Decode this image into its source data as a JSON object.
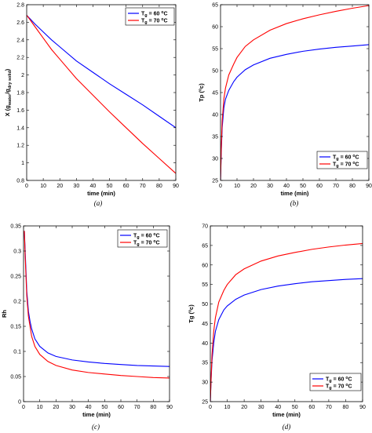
{
  "chart_data": [
    {
      "type": "line",
      "caption": "(a)",
      "xlabel": "time (min)",
      "ylabel": "X (g_water/g_dry solid)",
      "xlim": [
        0,
        90
      ],
      "ylim": [
        0.8,
        2.8
      ],
      "xticks": [
        "0",
        "10",
        "20",
        "30",
        "40",
        "50",
        "60",
        "70",
        "80",
        "90"
      ],
      "yticks": [
        "0.8",
        "1",
        "1.2",
        "1.4",
        "1.6",
        "1.8",
        "2",
        "2.2",
        "2.4",
        "2.6",
        "2.8"
      ],
      "legend_position": "top-right",
      "series": [
        {
          "name": "Tg = 60 °C",
          "color": "#0000ff",
          "x": [
            0,
            2,
            5,
            10,
            15,
            20,
            30,
            40,
            50,
            60,
            70,
            80,
            90
          ],
          "y": [
            2.68,
            2.64,
            2.58,
            2.49,
            2.4,
            2.32,
            2.16,
            2.03,
            1.9,
            1.78,
            1.66,
            1.53,
            1.4
          ]
        },
        {
          "name": "Tg = 70 °C",
          "color": "#ff0000",
          "x": [
            0,
            2,
            5,
            10,
            15,
            20,
            30,
            40,
            50,
            60,
            70,
            80,
            90
          ],
          "y": [
            2.68,
            2.63,
            2.55,
            2.42,
            2.29,
            2.18,
            1.96,
            1.77,
            1.58,
            1.4,
            1.22,
            1.05,
            0.88
          ]
        }
      ]
    },
    {
      "type": "line",
      "caption": "(b)",
      "xlabel": "time (min)",
      "ylabel": "Tp (°c)",
      "xlim": [
        0,
        90
      ],
      "ylim": [
        25,
        65
      ],
      "xticks": [
        "0",
        "10",
        "20",
        "30",
        "40",
        "50",
        "60",
        "70",
        "80",
        "90"
      ],
      "yticks": [
        "25",
        "30",
        "35",
        "40",
        "45",
        "50",
        "55",
        "60",
        "65"
      ],
      "legend_position": "bottom-right",
      "series": [
        {
          "name": "Tg = 60 °C",
          "color": "#0000ff",
          "x": [
            0,
            0.5,
            1,
            2,
            3,
            5,
            8,
            10,
            15,
            20,
            30,
            40,
            50,
            60,
            70,
            80,
            90
          ],
          "y": [
            25,
            32,
            37,
            41.5,
            43.5,
            45.5,
            47.5,
            48.5,
            50.2,
            51.3,
            52.8,
            53.7,
            54.4,
            54.9,
            55.3,
            55.6,
            55.9
          ]
        },
        {
          "name": "Tg = 70 °C",
          "color": "#ff0000",
          "x": [
            0,
            0.5,
            1,
            2,
            3,
            5,
            8,
            10,
            15,
            20,
            30,
            40,
            50,
            60,
            70,
            80,
            90
          ],
          "y": [
            25,
            33,
            38.5,
            43.5,
            46,
            49,
            51.5,
            53,
            55.5,
            57,
            59.2,
            60.7,
            61.8,
            62.7,
            63.5,
            64.2,
            64.8
          ]
        }
      ]
    },
    {
      "type": "line",
      "caption": "(c)",
      "xlabel": "time (min)",
      "ylabel": "Rh",
      "xlim": [
        0,
        90
      ],
      "ylim": [
        0,
        0.35
      ],
      "xticks": [
        "0",
        "10",
        "20",
        "30",
        "40",
        "50",
        "60",
        "70",
        "80",
        "90"
      ],
      "yticks": [
        "0",
        "0.05",
        "0.1",
        "0.15",
        "0.2",
        "0.25",
        "0.3",
        "0.35"
      ],
      "legend_position": "top-right",
      "series": [
        {
          "name": "Tg = 60 °C",
          "color": "#0000ff",
          "x": [
            0.5,
            1,
            2,
            3,
            4,
            5,
            7,
            10,
            15,
            20,
            30,
            40,
            50,
            60,
            70,
            80,
            90
          ],
          "y": [
            0.34,
            0.3,
            0.22,
            0.18,
            0.16,
            0.145,
            0.125,
            0.11,
            0.097,
            0.09,
            0.083,
            0.079,
            0.076,
            0.074,
            0.072,
            0.071,
            0.07
          ]
        },
        {
          "name": "Tg = 70 °C",
          "color": "#ff0000",
          "x": [
            0.5,
            1,
            2,
            3,
            4,
            5,
            7,
            10,
            15,
            20,
            30,
            40,
            50,
            60,
            70,
            80,
            90
          ],
          "y": [
            0.34,
            0.29,
            0.21,
            0.17,
            0.15,
            0.13,
            0.11,
            0.094,
            0.08,
            0.072,
            0.063,
            0.058,
            0.055,
            0.052,
            0.05,
            0.048,
            0.047
          ]
        }
      ]
    },
    {
      "type": "line",
      "caption": "(d)",
      "xlabel": "time (min)",
      "ylabel": "Tg (°c)",
      "xlim": [
        0,
        90
      ],
      "ylim": [
        25,
        70
      ],
      "xticks": [
        "0",
        "10",
        "20",
        "30",
        "40",
        "50",
        "60",
        "70",
        "80",
        "90"
      ],
      "yticks": [
        "25",
        "30",
        "35",
        "40",
        "45",
        "50",
        "55",
        "60",
        "65",
        "70"
      ],
      "legend_position": "bottom-right",
      "series": [
        {
          "name": "Tg = 60 °C",
          "color": "#0000ff",
          "x": [
            0,
            0.5,
            1,
            2,
            3,
            5,
            8,
            10,
            15,
            20,
            30,
            40,
            50,
            60,
            70,
            80,
            90
          ],
          "y": [
            25,
            31,
            35.5,
            40,
            43,
            46,
            48.5,
            49.5,
            51.2,
            52.3,
            53.7,
            54.6,
            55.2,
            55.7,
            56,
            56.3,
            56.5
          ]
        },
        {
          "name": "Tg = 70 °C",
          "color": "#ff0000",
          "x": [
            0,
            0.5,
            1,
            2,
            3,
            5,
            8,
            10,
            15,
            20,
            30,
            40,
            50,
            60,
            70,
            80,
            90
          ],
          "y": [
            25,
            31.5,
            37,
            43,
            46.5,
            50.5,
            53.5,
            55,
            57.5,
            59,
            61,
            62.3,
            63.2,
            64,
            64.6,
            65.1,
            65.5
          ]
        }
      ]
    }
  ]
}
